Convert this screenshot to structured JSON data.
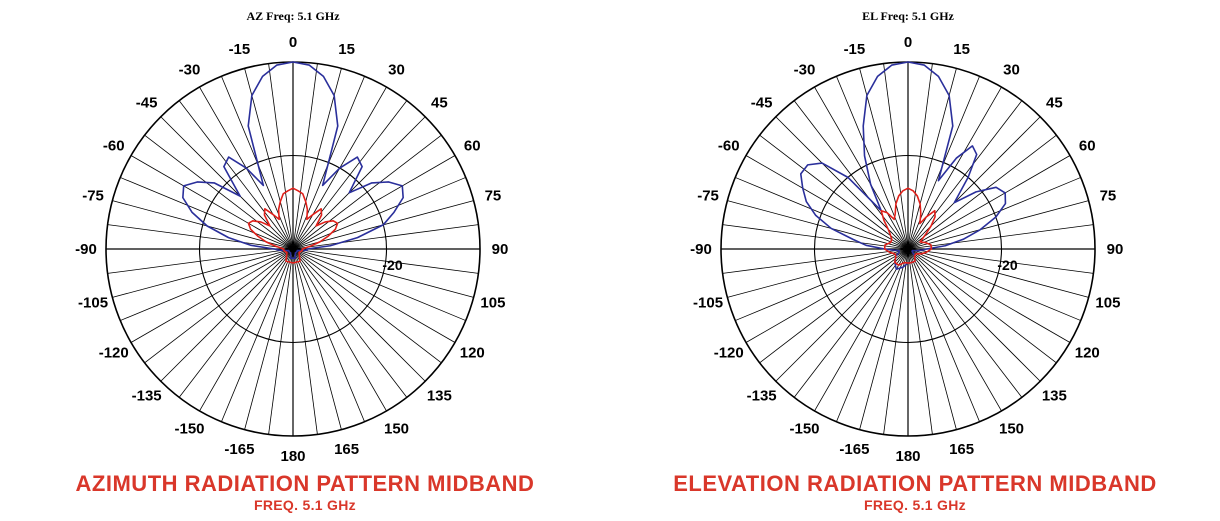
{
  "colors": {
    "caption": "#d9372a",
    "series_blue": "#2a2f9b",
    "series_red": "#e0201a",
    "grid": "#000000"
  },
  "chart_data": [
    {
      "type": "polar-line",
      "title": "AZ  Freq:  5.1 GHz",
      "caption": "AZIMUTH RADIATION PATTERN MIDBAND",
      "subcaption": "FREQ. 5.1 GHz",
      "angle_ticks": [
        0,
        15,
        30,
        45,
        60,
        75,
        90,
        105,
        120,
        135,
        150,
        165,
        180,
        -165,
        -150,
        -135,
        -120,
        -105,
        -90,
        -75,
        -60,
        -45,
        -30,
        -15
      ],
      "ring_label": "-20",
      "rlim_db": [
        -40,
        0
      ],
      "series": [
        {
          "color": "#2a2f9b",
          "theta": [
            0,
            5,
            10,
            15,
            20,
            25,
            30,
            35,
            40,
            45,
            50,
            55,
            60,
            65,
            70,
            75,
            80,
            85,
            90,
            95,
            100,
            110,
            120,
            135,
            150,
            165,
            180,
            -165,
            -150,
            -135,
            -120,
            -110,
            -100,
            -95,
            -90,
            -85,
            -80,
            -75,
            -70,
            -65,
            -60,
            -55,
            -50,
            -45,
            -40,
            -35,
            -30,
            -25,
            -20,
            -15,
            -10,
            -5
          ],
          "r_db": [
            0,
            -0.5,
            -2.5,
            -6,
            -12,
            -25,
            -20,
            -16,
            -17,
            -23,
            -18,
            -15,
            -13,
            -14,
            -17,
            -20,
            -26,
            -32,
            -37,
            -37,
            -38,
            -39,
            -39,
            -39,
            -39,
            -38,
            -38,
            -38,
            -39,
            -39,
            -39,
            -39,
            -38,
            -37,
            -36,
            -31,
            -26,
            -21,
            -17,
            -14,
            -13,
            -15,
            -18,
            -24,
            -17,
            -16,
            -20,
            -25,
            -12,
            -6,
            -2.5,
            -0.5
          ]
        },
        {
          "color": "#e0201a",
          "theta": [
            0,
            5,
            10,
            15,
            20,
            25,
            30,
            35,
            40,
            45,
            50,
            55,
            60,
            65,
            70,
            75,
            80,
            90,
            100,
            120,
            150,
            180,
            -150,
            -120,
            -100,
            -90,
            -80,
            -75,
            -70,
            -65,
            -60,
            -55,
            -50,
            -45,
            -40,
            -35,
            -30,
            -25,
            -20,
            -15,
            -10,
            -5
          ],
          "r_db": [
            -27,
            -27.5,
            -28,
            -29.5,
            -31,
            -33,
            -31.5,
            -29.5,
            -30.5,
            -33,
            -31,
            -29.5,
            -29,
            -30,
            -32,
            -34,
            -36,
            -38,
            -38,
            -38.5,
            -37,
            -37,
            -37,
            -38.5,
            -38,
            -38,
            -36,
            -34,
            -32,
            -30,
            -29,
            -29.5,
            -31,
            -33,
            -30.5,
            -29.5,
            -31.5,
            -33,
            -31,
            -29.5,
            -28,
            -27.5
          ]
        }
      ]
    },
    {
      "type": "polar-line",
      "title": "EL  Freq:  5.1 GHz",
      "caption": "ELEVATION RADIATION PATTERN MIDBAND",
      "subcaption": "FREQ. 5.1 GHz",
      "angle_ticks": [
        0,
        15,
        30,
        45,
        60,
        75,
        90,
        105,
        120,
        135,
        150,
        165,
        180,
        -165,
        -150,
        -135,
        -120,
        -105,
        -90,
        -75,
        -60,
        -45,
        -30,
        -15
      ],
      "ring_label": "-20",
      "rlim_db": [
        -40,
        0
      ],
      "series": [
        {
          "color": "#2a2f9b",
          "theta": [
            0,
            5,
            10,
            15,
            20,
            24,
            28,
            32,
            36,
            40,
            45,
            50,
            55,
            60,
            65,
            70,
            75,
            80,
            85,
            90,
            95,
            100,
            110,
            120,
            135,
            150,
            165,
            180,
            -165,
            -150,
            -135,
            -120,
            -110,
            -100,
            -95,
            -90,
            -85,
            -80,
            -75,
            -70,
            -65,
            -60,
            -55,
            -50,
            -45,
            -40,
            -35,
            -30,
            -25,
            -20,
            -15,
            -10,
            -5
          ],
          "r_db": [
            0,
            -0.5,
            -2.5,
            -6,
            -12,
            -24,
            -18,
            -14,
            -15,
            -20,
            -26,
            -21,
            -17,
            -16,
            -17,
            -20,
            -24,
            -28,
            -32,
            -36,
            -37,
            -38,
            -39,
            -39,
            -38,
            -37,
            -37,
            -37,
            -36,
            -35,
            -36,
            -37,
            -38,
            -38,
            -37,
            -35,
            -31,
            -28,
            -23,
            -19,
            -16,
            -14,
            -12,
            -12,
            -14,
            -20,
            -30,
            -24,
            -18,
            -12,
            -6,
            -2.5,
            -0.5
          ]
        },
        {
          "color": "#e0201a",
          "theta": [
            0,
            5,
            10,
            15,
            20,
            25,
            30,
            35,
            40,
            45,
            50,
            60,
            70,
            80,
            90,
            100,
            110,
            120,
            135,
            150,
            165,
            180,
            -165,
            -150,
            -135,
            -120,
            -110,
            -100,
            -90,
            -80,
            -70,
            -60,
            -50,
            -45,
            -40,
            -35,
            -30,
            -25,
            -20,
            -15,
            -10,
            -5
          ],
          "r_db": [
            -27,
            -27.5,
            -28.5,
            -30,
            -32,
            -34,
            -32,
            -30,
            -31,
            -33,
            -35,
            -37,
            -36,
            -35,
            -35,
            -36,
            -37,
            -38,
            -38,
            -37,
            -37,
            -37,
            -37,
            -36,
            -36,
            -37,
            -37,
            -36,
            -35,
            -35,
            -36,
            -36,
            -35,
            -34,
            -32,
            -30,
            -31,
            -33,
            -32,
            -30,
            -28.5,
            -27.5
          ]
        }
      ]
    }
  ]
}
